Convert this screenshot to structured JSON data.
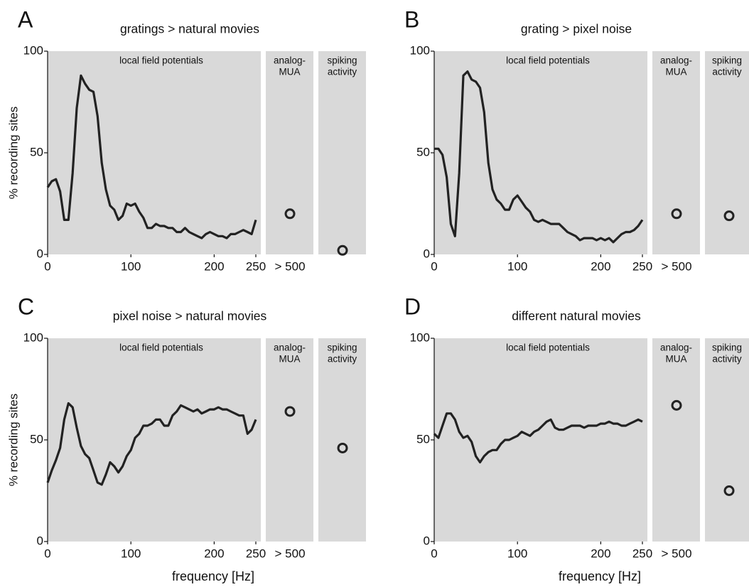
{
  "chart_data": [
    {
      "type": "line",
      "panel_label": "A",
      "title": "gratings > natural movies",
      "ylabel": "% recording sites",
      "sections": [
        [
          "local field potentials"
        ],
        [
          "analog-",
          "MUA"
        ],
        [
          "spiking",
          "activity"
        ]
      ],
      "xlim": [
        0,
        256
      ],
      "xticks": [
        0,
        100,
        200,
        250
      ],
      "ylim": [
        0,
        100
      ],
      "yticks": [
        0,
        50,
        100
      ],
      "color": "#222222",
      "x": [
        0,
        5,
        10,
        15,
        20,
        25,
        30,
        35,
        40,
        45,
        50,
        55,
        60,
        65,
        70,
        75,
        80,
        85,
        90,
        95,
        100,
        105,
        110,
        115,
        120,
        125,
        130,
        135,
        140,
        145,
        150,
        155,
        160,
        165,
        170,
        175,
        180,
        185,
        190,
        195,
        200,
        205,
        210,
        215,
        220,
        225,
        230,
        235,
        240,
        245,
        250
      ],
      "values": [
        33,
        36,
        37,
        31,
        17,
        17,
        40,
        72,
        88,
        84,
        81,
        80,
        68,
        45,
        32,
        24,
        22,
        17,
        19,
        25,
        24,
        25,
        21,
        18,
        13,
        13,
        15,
        14,
        14,
        13,
        13,
        11,
        11,
        13,
        11,
        10,
        9,
        8,
        10,
        11,
        10,
        9,
        9,
        8,
        10,
        10,
        11,
        12,
        11,
        10,
        17
      ],
      "mua": {
        "label": "> 500",
        "value": 20
      },
      "spiking": {
        "value": 2
      }
    },
    {
      "type": "line",
      "panel_label": "B",
      "title": "grating > pixel noise",
      "sections": [
        [
          "local field potentials"
        ],
        [
          "analog-",
          "MUA"
        ],
        [
          "spiking",
          "activity"
        ]
      ],
      "xlim": [
        0,
        256
      ],
      "xticks": [
        0,
        100,
        200,
        250
      ],
      "ylim": [
        0,
        100
      ],
      "yticks": [
        0,
        50,
        100
      ],
      "color": "#222222",
      "x": [
        0,
        5,
        10,
        15,
        20,
        25,
        30,
        35,
        40,
        45,
        50,
        55,
        60,
        65,
        70,
        75,
        80,
        85,
        90,
        95,
        100,
        105,
        110,
        115,
        120,
        125,
        130,
        135,
        140,
        145,
        150,
        155,
        160,
        165,
        170,
        175,
        180,
        185,
        190,
        195,
        200,
        205,
        210,
        215,
        220,
        225,
        230,
        235,
        240,
        245,
        250
      ],
      "values": [
        52,
        52,
        49,
        38,
        15,
        9,
        40,
        88,
        90,
        86,
        85,
        82,
        70,
        45,
        32,
        27,
        25,
        22,
        22,
        27,
        29,
        26,
        23,
        21,
        17,
        16,
        17,
        16,
        15,
        15,
        15,
        13,
        11,
        10,
        9,
        7,
        8,
        8,
        8,
        7,
        8,
        7,
        8,
        6,
        8,
        10,
        11,
        11,
        12,
        14,
        17
      ],
      "mua": {
        "label": "> 500",
        "value": 20
      },
      "spiking": {
        "value": 19
      }
    },
    {
      "type": "line",
      "panel_label": "C",
      "title": "pixel noise > natural movies",
      "ylabel": "% recording sites",
      "xlabel": "frequency [Hz]",
      "sections": [
        [
          "local field potentials"
        ],
        [
          "analog-",
          "MUA"
        ],
        [
          "spiking",
          "activity"
        ]
      ],
      "xlim": [
        0,
        256
      ],
      "xticks": [
        0,
        100,
        200,
        250
      ],
      "ylim": [
        0,
        100
      ],
      "yticks": [
        0,
        50,
        100
      ],
      "color": "#222222",
      "x": [
        0,
        5,
        10,
        15,
        20,
        25,
        30,
        35,
        40,
        45,
        50,
        55,
        60,
        65,
        70,
        75,
        80,
        85,
        90,
        95,
        100,
        105,
        110,
        115,
        120,
        125,
        130,
        135,
        140,
        145,
        150,
        155,
        160,
        165,
        170,
        175,
        180,
        185,
        190,
        195,
        200,
        205,
        210,
        215,
        220,
        225,
        230,
        235,
        240,
        245,
        250
      ],
      "values": [
        29,
        35,
        40,
        46,
        60,
        68,
        66,
        56,
        47,
        43,
        41,
        35,
        29,
        28,
        33,
        39,
        37,
        34,
        37,
        42,
        45,
        51,
        53,
        57,
        57,
        58,
        60,
        60,
        57,
        57,
        62,
        64,
        67,
        66,
        65,
        64,
        65,
        63,
        64,
        65,
        65,
        66,
        65,
        65,
        64,
        63,
        62,
        62,
        53,
        55,
        60
      ],
      "mua": {
        "label": "> 500",
        "value": 64
      },
      "spiking": {
        "value": 46
      }
    },
    {
      "type": "line",
      "panel_label": "D",
      "title": "different natural movies",
      "xlabel": "frequency [Hz]",
      "sections": [
        [
          "local field potentials"
        ],
        [
          "analog-",
          "MUA"
        ],
        [
          "spiking",
          "activity"
        ]
      ],
      "xlim": [
        0,
        256
      ],
      "xticks": [
        0,
        100,
        200,
        250
      ],
      "ylim": [
        0,
        100
      ],
      "yticks": [
        0,
        50,
        100
      ],
      "color": "#222222",
      "x": [
        0,
        5,
        10,
        15,
        20,
        25,
        30,
        35,
        40,
        45,
        50,
        55,
        60,
        65,
        70,
        75,
        80,
        85,
        90,
        95,
        100,
        105,
        110,
        115,
        120,
        125,
        130,
        135,
        140,
        145,
        150,
        155,
        160,
        165,
        170,
        175,
        180,
        185,
        190,
        195,
        200,
        205,
        210,
        215,
        220,
        225,
        230,
        235,
        240,
        245,
        250
      ],
      "values": [
        53,
        51,
        57,
        63,
        63,
        60,
        54,
        51,
        52,
        49,
        42,
        39,
        42,
        44,
        45,
        45,
        48,
        50,
        50,
        51,
        52,
        54,
        53,
        52,
        54,
        55,
        57,
        59,
        60,
        56,
        55,
        55,
        56,
        57,
        57,
        57,
        56,
        57,
        57,
        57,
        58,
        58,
        59,
        58,
        58,
        57,
        57,
        58,
        59,
        60,
        59
      ],
      "mua": {
        "label": "> 500",
        "value": 67
      },
      "spiking": {
        "value": 25
      }
    }
  ]
}
